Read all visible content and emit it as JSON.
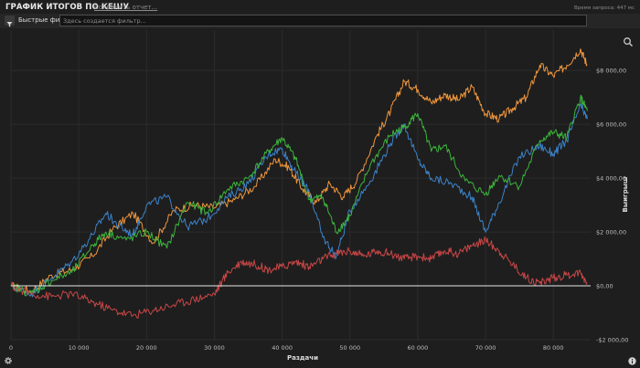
{
  "header": {
    "title": "ГРАФИК ИТОГОВ ПО КЕШУ",
    "save_report": "Сохранить отчет...",
    "request_time": "Время запроса: 447 мс"
  },
  "filter": {
    "quick_filters_label": "Быстрые фильт",
    "placeholder": "Здесь создается фильтр..."
  },
  "icons": {
    "filter": "filter-icon",
    "zoom": "magnifier-icon",
    "settings": "gear-icon",
    "info": "info-icon"
  },
  "colors": {
    "background": "#1e1e1e",
    "grid": "#2c2c2c",
    "zero_line": "#e8e8e8"
  },
  "chart_data": {
    "type": "line",
    "xlabel": "Раздачи",
    "ylabel": "Выигрыш",
    "xlim": [
      0,
      85500
    ],
    "ylim": [
      -2000,
      9500
    ],
    "x_ticks": [
      0,
      10000,
      20000,
      30000,
      40000,
      50000,
      60000,
      70000,
      80000
    ],
    "x_tick_labels": [
      "0",
      "10 000",
      "20 000",
      "30 000",
      "40 000",
      "50 000",
      "60 000",
      "70 000",
      "80 000"
    ],
    "y_ticks": [
      -2000,
      0,
      2000,
      4000,
      6000,
      8000
    ],
    "y_tick_labels": [
      "-$2 000,00",
      "$0,00",
      "$2 000,00",
      "$4 000,00",
      "$6 000,00",
      "$8 000,00"
    ],
    "grid": true,
    "series": [
      {
        "color": "#f0963c",
        "x": [
          0,
          3000,
          6000,
          9000,
          12000,
          15000,
          18000,
          21000,
          24000,
          27000,
          30000,
          33000,
          36000,
          39000,
          41000,
          43000,
          45000,
          47000,
          49000,
          51000,
          54000,
          56000,
          58000,
          60000,
          62000,
          64000,
          66000,
          68000,
          70000,
          72000,
          74000,
          76000,
          78000,
          80000,
          82000,
          84000,
          85000
        ],
        "y": [
          0,
          -200,
          400,
          600,
          1100,
          2100,
          2700,
          1600,
          2800,
          3000,
          2900,
          3200,
          3700,
          4700,
          4400,
          3600,
          3100,
          3800,
          3300,
          3900,
          5600,
          6500,
          7600,
          7300,
          6800,
          7100,
          6900,
          7400,
          6400,
          6200,
          6600,
          7000,
          8200,
          7800,
          8200,
          8800,
          8200
        ]
      },
      {
        "color": "#3c82c8",
        "x": [
          0,
          3000,
          6000,
          9000,
          12000,
          14000,
          16000,
          18000,
          20000,
          23000,
          26000,
          29000,
          32000,
          35000,
          38000,
          40000,
          42000,
          44000,
          46000,
          48000,
          50000,
          53000,
          56000,
          58000,
          60000,
          62000,
          65000,
          68000,
          70000,
          72000,
          75000,
          78000,
          80000,
          82000,
          84000,
          85000
        ],
        "y": [
          0,
          -300,
          300,
          900,
          1900,
          2700,
          2200,
          1900,
          3000,
          3300,
          2200,
          2500,
          3300,
          3800,
          4900,
          5100,
          4200,
          3500,
          1800,
          1100,
          2800,
          3900,
          5300,
          6000,
          4700,
          4000,
          3800,
          3300,
          2000,
          3100,
          4800,
          5200,
          4900,
          5400,
          6700,
          6200
        ]
      },
      {
        "color": "#3cb43c",
        "x": [
          0,
          3000,
          6000,
          9000,
          12000,
          14000,
          17000,
          20000,
          23000,
          26000,
          29000,
          32000,
          35000,
          38000,
          40000,
          42000,
          44000,
          46000,
          48000,
          50000,
          53000,
          56000,
          58000,
          60000,
          62000,
          64000,
          67000,
          70000,
          72000,
          75000,
          78000,
          80000,
          82000,
          84000,
          85000
        ],
        "y": [
          0,
          -300,
          200,
          500,
          1500,
          2000,
          1700,
          2000,
          1400,
          3100,
          2700,
          3600,
          4000,
          5000,
          5500,
          4700,
          3200,
          3300,
          2000,
          2600,
          4500,
          5600,
          5900,
          6400,
          5000,
          5200,
          3900,
          3400,
          4100,
          3700,
          5400,
          5700,
          5500,
          7000,
          6500
        ]
      },
      {
        "color": "#c84646",
        "x": [
          0,
          3000,
          6000,
          9000,
          12000,
          15000,
          18000,
          21000,
          24000,
          27000,
          30000,
          32000,
          34000,
          36000,
          38000,
          40000,
          42000,
          44000,
          46000,
          48000,
          50000,
          52000,
          54000,
          56000,
          58000,
          60000,
          62000,
          64000,
          66000,
          68000,
          70000,
          72000,
          74000,
          76000,
          78000,
          80000,
          82000,
          84000,
          85000
        ],
        "y": [
          0,
          -300,
          -400,
          -300,
          -600,
          -900,
          -1100,
          -900,
          -700,
          -500,
          -300,
          500,
          900,
          800,
          600,
          700,
          900,
          700,
          1000,
          1200,
          1300,
          1100,
          1300,
          1200,
          1000,
          1100,
          1000,
          1300,
          1200,
          1500,
          1700,
          1300,
          800,
          300,
          100,
          300,
          400,
          500,
          100
        ]
      }
    ]
  }
}
